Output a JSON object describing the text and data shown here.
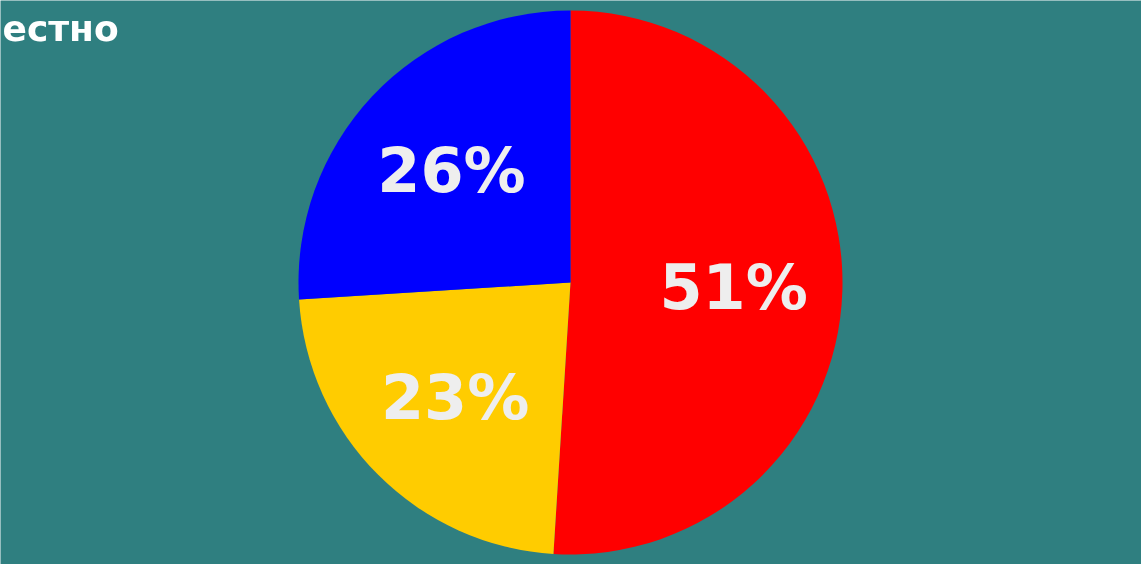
{
  "chart_data": {
    "type": "pie",
    "categories": [
      null,
      null,
      null
    ],
    "values": [
      51,
      23,
      26
    ],
    "colors": [
      "#ff0000",
      "#ffcc00",
      "#0000ff"
    ],
    "value_labels": [
      "51%",
      "23%",
      "26%"
    ],
    "annotations": [
      "естно"
    ]
  }
}
